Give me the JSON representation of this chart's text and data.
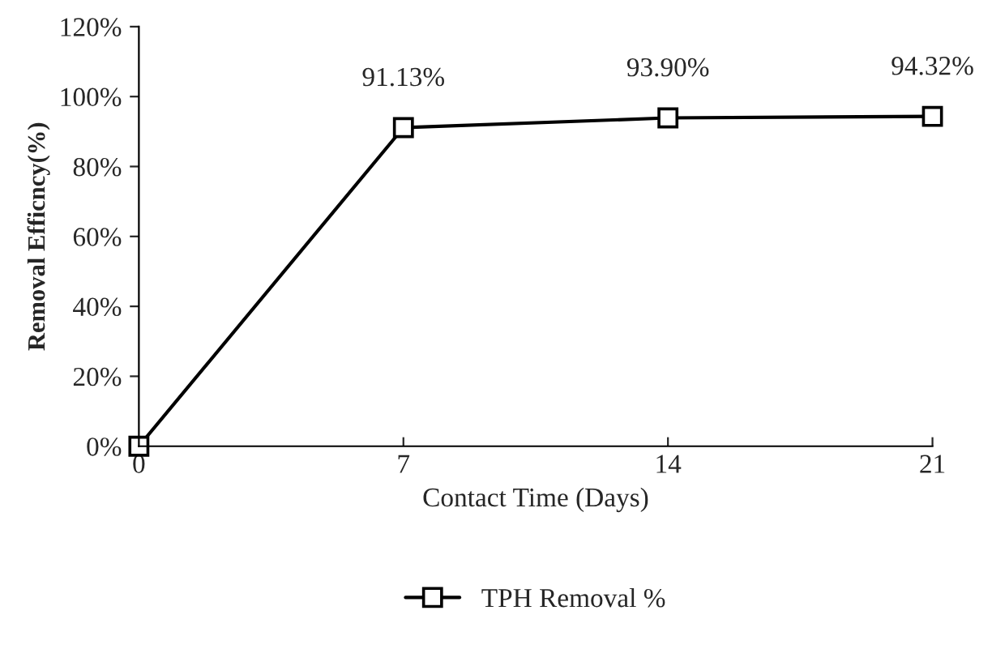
{
  "chart_data": {
    "type": "line",
    "xlabel": "Contact Time (Days)",
    "ylabel": "Removal Efficncy(%)",
    "x": [
      0,
      7,
      14,
      21
    ],
    "series": [
      {
        "name": "TPH Removal %",
        "color": "#000000",
        "values": [
          0,
          91.13,
          93.9,
          94.32
        ],
        "value_labels": [
          null,
          "91.13%",
          "93.90%",
          "94.32%"
        ]
      }
    ],
    "xlim": [
      0,
      21
    ],
    "xticks": [
      0,
      7,
      14,
      21
    ],
    "ylim": [
      0,
      120
    ],
    "yticks": [
      {
        "value": 0,
        "label": "0%"
      },
      {
        "value": 20,
        "label": "20%"
      },
      {
        "value": 40,
        "label": "40%"
      },
      {
        "value": 60,
        "label": "60%"
      },
      {
        "value": 80,
        "label": "80%"
      },
      {
        "value": 100,
        "label": "100%"
      },
      {
        "value": 120,
        "label": "120%"
      }
    ],
    "grid": false,
    "legend": "bottom",
    "marker": "square",
    "line_style": "solid"
  }
}
